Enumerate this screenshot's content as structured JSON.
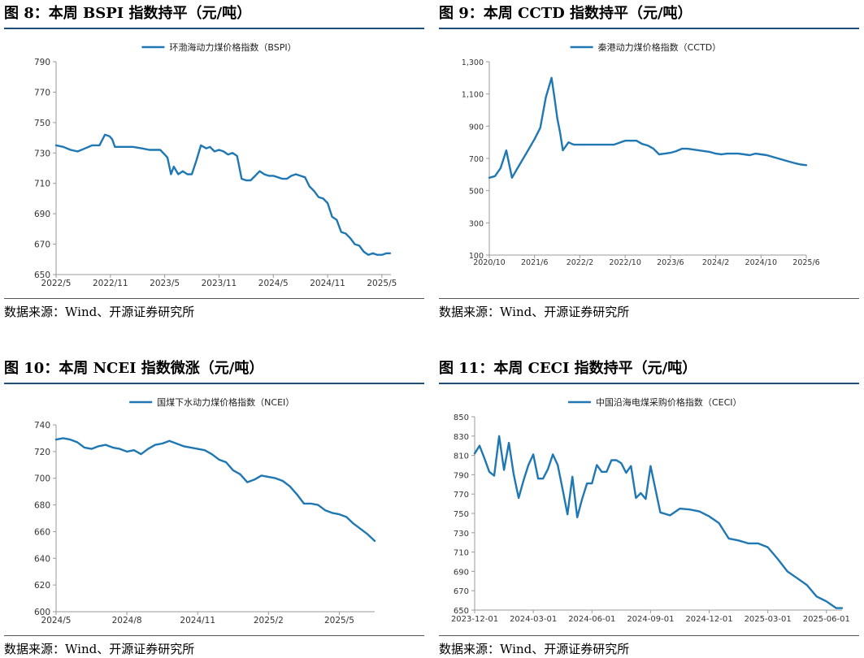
{
  "colors": {
    "line": "#1f77b4",
    "axis": "#999999",
    "title_rule": "#1f4e79"
  },
  "panels": [
    {
      "title": "图 8：本周 BSPI 指数持平（元/吨）",
      "source": "数据来源：Wind、开源证券研究所",
      "chart_data": {
        "type": "line",
        "legend": "环渤海动力煤价格指数（BSPI）",
        "legend_position": "top-center",
        "ylim": [
          650,
          790
        ],
        "yticks": [
          650,
          670,
          690,
          710,
          730,
          750,
          770,
          790
        ],
        "ytick_labels": [
          "650",
          "670",
          "690",
          "710",
          "730",
          "750",
          "770",
          "790"
        ],
        "xticks": [
          0,
          6,
          12,
          18,
          24,
          30,
          36
        ],
        "xtick_labels": [
          "2022/5",
          "2022/11",
          "2023/5",
          "2023/11",
          "2024/5",
          "2024/11",
          "2025/5"
        ],
        "xlim": [
          0,
          37
        ],
        "x": [
          0,
          0.8,
          1.6,
          2.4,
          3.2,
          4.0,
          4.8,
          5.4,
          5.9,
          6.2,
          6.5,
          6.7,
          7.5,
          8.5,
          9.5,
          10.3,
          11.0,
          11.5,
          12.0,
          12.3,
          12.7,
          13.0,
          13.5,
          14.0,
          14.5,
          15.0,
          15.5,
          16.0,
          16.3,
          16.6,
          17.0,
          17.5,
          18.0,
          18.5,
          19.0,
          19.5,
          20.0,
          20.5,
          21.0,
          21.5,
          22.0,
          22.5,
          23.0,
          23.5,
          24.0,
          24.5,
          25.0,
          25.5,
          26.0,
          26.5,
          27.0,
          27.5,
          28.0,
          28.5,
          29.0,
          29.5,
          30.0,
          30.5,
          31.0,
          31.5,
          32.0,
          32.5,
          33.0,
          33.5,
          34.0,
          34.5,
          35.0,
          35.5,
          36.0,
          36.5,
          36.9
        ],
        "y": [
          735,
          734,
          732,
          731,
          733,
          735,
          735,
          742,
          741,
          739,
          734,
          734,
          734,
          734,
          733,
          732,
          732,
          732,
          729,
          727,
          716,
          721,
          716,
          718,
          716,
          716,
          725,
          735,
          734,
          733,
          734,
          731,
          732,
          731,
          729,
          730,
          728,
          713,
          712,
          712,
          715,
          718,
          716,
          715,
          715,
          714,
          713,
          713,
          715,
          716,
          715,
          714,
          708,
          705,
          701,
          700,
          697,
          688,
          686,
          678,
          677,
          674,
          670,
          669,
          665,
          663,
          664,
          663,
          663,
          664,
          664
        ]
      }
    },
    {
      "title": "图 9：本周 CCTD 指数持平（元/吨）",
      "source": "数据来源：Wind、开源证券研究所",
      "chart_data": {
        "type": "line",
        "legend": "秦港动力煤价格指数（CCTD）",
        "legend_position": "top-center",
        "ylim": [
          100,
          1300
        ],
        "yticks": [
          100,
          300,
          500,
          700,
          900,
          1100,
          1300
        ],
        "ytick_labels": [
          "100",
          "300",
          "500",
          "700",
          "900",
          "1,100",
          "1,300"
        ],
        "xticks": [
          0,
          8,
          16,
          24,
          32,
          40,
          48,
          56
        ],
        "xtick_labels": [
          "2020/10",
          "2021/6",
          "2022/2",
          "2022/10",
          "2023/6",
          "2024/2",
          "2024/10",
          "2025/6"
        ],
        "xlim": [
          0,
          56
        ],
        "x": [
          0,
          1,
          2,
          3,
          4,
          5,
          6,
          7,
          8,
          9,
          10,
          11,
          11.5,
          12,
          12.5,
          13,
          14,
          14.6,
          15,
          15.5,
          16,
          18,
          20,
          22,
          24,
          25,
          26,
          27,
          28,
          29,
          30,
          31,
          32,
          33,
          34,
          35,
          36,
          37,
          38,
          39,
          40,
          41,
          42,
          43,
          44,
          45,
          46,
          47,
          48,
          49,
          50,
          51,
          52,
          53,
          54,
          55,
          56
        ],
        "y": [
          580,
          590,
          640,
          750,
          580,
          640,
          700,
          760,
          820,
          890,
          1080,
          1200,
          1080,
          950,
          860,
          750,
          800,
          790,
          785,
          785,
          785,
          785,
          785,
          785,
          810,
          810,
          810,
          790,
          780,
          760,
          725,
          730,
          735,
          745,
          760,
          760,
          755,
          750,
          745,
          740,
          730,
          725,
          730,
          730,
          730,
          725,
          720,
          730,
          725,
          720,
          710,
          700,
          690,
          680,
          670,
          662,
          658
        ]
      }
    },
    {
      "title": "图 10：本周 NCEI 指数微涨（元/吨）",
      "source": "数据来源：Wind、开源证券研究所",
      "chart_data": {
        "type": "line",
        "legend": "国煤下水动力煤价格指数（NCEI）",
        "legend_position": "top-center",
        "ylim": [
          600,
          740
        ],
        "yticks": [
          600,
          620,
          640,
          660,
          680,
          700,
          720,
          740
        ],
        "ytick_labels": [
          "600",
          "620",
          "640",
          "660",
          "680",
          "700",
          "720",
          "740"
        ],
        "xticks": [
          0,
          3,
          6,
          9,
          12
        ],
        "xtick_labels": [
          "2024/5",
          "2024/8",
          "2024/11",
          "2025/2",
          "2025/5"
        ],
        "xlim": [
          0,
          13.5
        ],
        "x": [
          0,
          0.3,
          0.6,
          0.9,
          1.2,
          1.5,
          1.8,
          2.1,
          2.4,
          2.7,
          3.0,
          3.3,
          3.6,
          3.9,
          4.2,
          4.5,
          4.8,
          5.1,
          5.4,
          5.7,
          6.0,
          6.3,
          6.6,
          6.9,
          7.2,
          7.5,
          7.8,
          8.1,
          8.4,
          8.7,
          9.0,
          9.3,
          9.6,
          9.9,
          10.2,
          10.5,
          10.8,
          11.1,
          11.4,
          11.7,
          12.0,
          12.3,
          12.6,
          12.9,
          13.2,
          13.5
        ],
        "y": [
          729,
          730,
          729,
          727,
          723,
          722,
          724,
          725,
          723,
          722,
          720,
          721,
          718,
          722,
          725,
          726,
          728,
          726,
          724,
          723,
          722,
          721,
          718,
          714,
          712,
          706,
          703,
          697,
          699,
          702,
          701,
          700,
          698,
          694,
          688,
          681,
          681,
          680,
          676,
          674,
          673,
          671,
          666,
          662,
          658,
          653
        ]
      }
    },
    {
      "title": "图 11：本周 CECI 指数持平（元/吨）",
      "source": "数据来源：Wind、开源证券研究所",
      "chart_data": {
        "type": "line",
        "legend": "中国沿海电煤采购价格指数（CECI）",
        "legend_position": "top-center",
        "ylim": [
          650,
          850
        ],
        "yticks": [
          650,
          670,
          690,
          710,
          730,
          750,
          770,
          790,
          810,
          830,
          850
        ],
        "ytick_labels": [
          "650",
          "670",
          "690",
          "710",
          "730",
          "750",
          "770",
          "790",
          "810",
          "830",
          "850"
        ],
        "xticks": [
          0,
          3,
          6,
          9,
          12,
          15,
          18
        ],
        "xtick_labels": [
          "2023-12-01",
          "2024-03-01",
          "2024-06-01",
          "2024-09-01",
          "2024-12-01",
          "2025-03-01",
          "2025-06-01"
        ],
        "xlim": [
          0,
          18.8
        ],
        "x": [
          0,
          0.25,
          0.5,
          0.75,
          1.0,
          1.25,
          1.5,
          1.75,
          2.0,
          2.25,
          2.5,
          2.75,
          3.0,
          3.25,
          3.5,
          3.75,
          4.0,
          4.25,
          4.5,
          4.75,
          5.0,
          5.25,
          5.5,
          5.75,
          6.0,
          6.25,
          6.5,
          6.75,
          7.0,
          7.25,
          7.5,
          7.75,
          8.0,
          8.25,
          8.5,
          8.75,
          9.0,
          9.5,
          10.0,
          10.5,
          11.0,
          11.5,
          12.0,
          12.5,
          13.0,
          13.5,
          14.0,
          14.5,
          15.0,
          15.5,
          16.0,
          16.5,
          17.0,
          17.5,
          18.0,
          18.5,
          18.8
        ],
        "y": [
          812,
          820,
          807,
          793,
          789,
          830,
          795,
          823,
          790,
          766,
          784,
          800,
          811,
          786,
          786,
          796,
          811,
          800,
          775,
          749,
          788,
          746,
          765,
          781,
          781,
          800,
          793,
          793,
          805,
          805,
          802,
          792,
          799,
          766,
          771,
          765,
          799,
          751,
          748,
          755,
          754,
          752,
          747,
          740,
          724,
          722,
          719,
          719,
          715,
          703,
          690,
          683,
          676,
          664,
          659,
          652,
          652
        ]
      }
    }
  ]
}
